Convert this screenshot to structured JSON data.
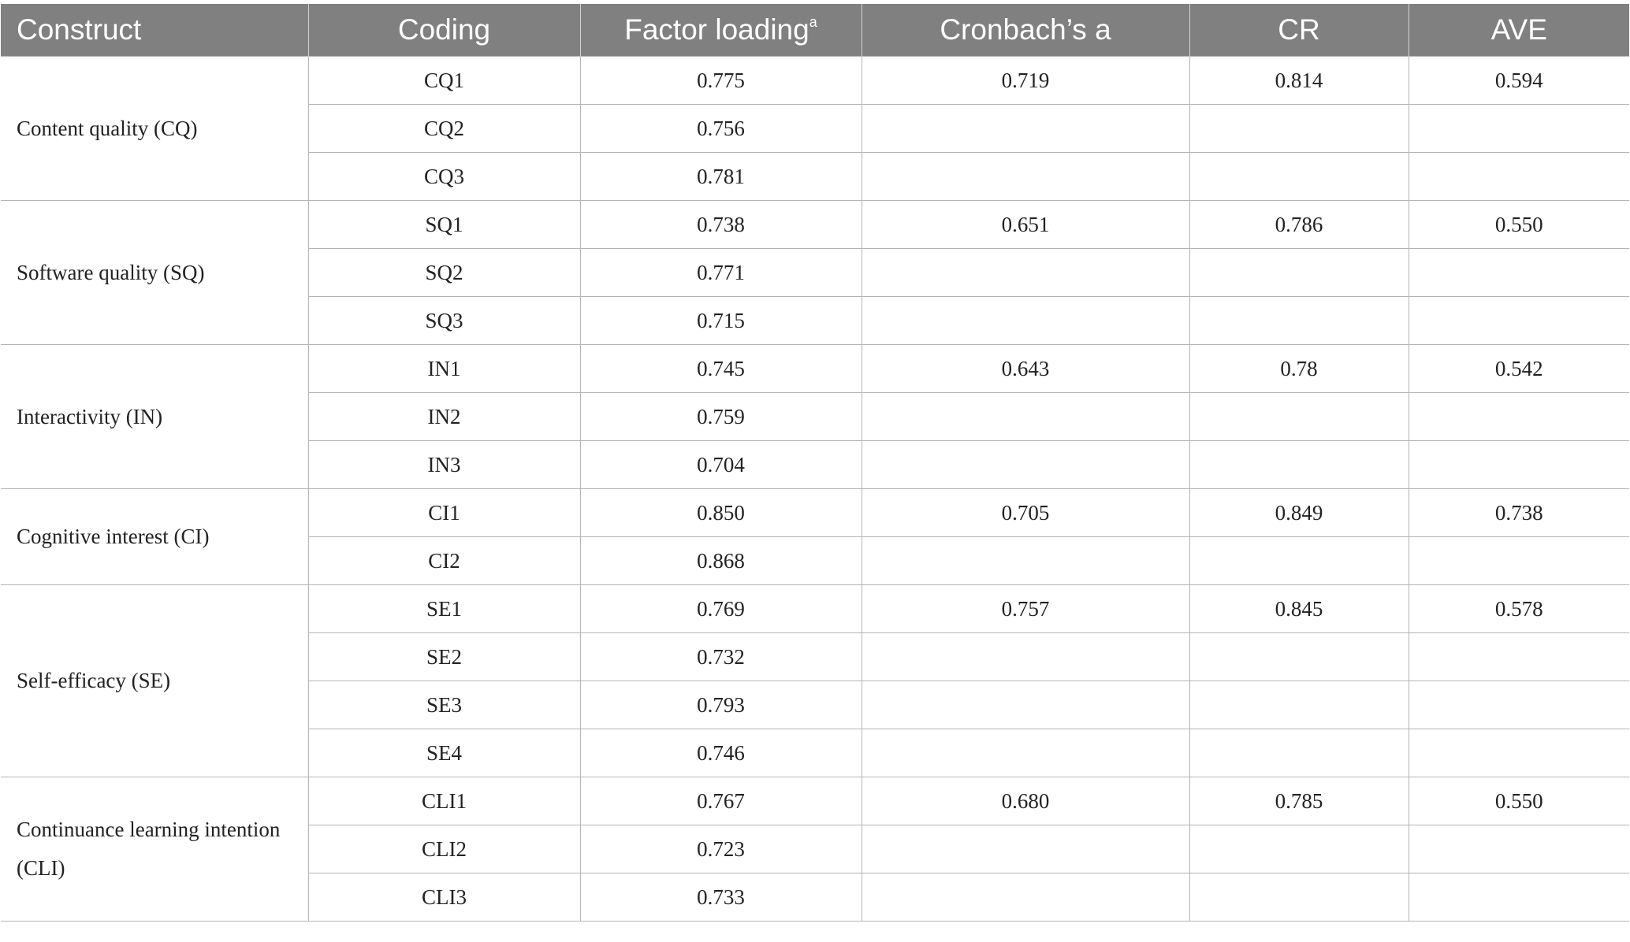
{
  "headers": {
    "construct": "Construct",
    "coding": "Coding",
    "factor_loading": "Factor loading",
    "factor_loading_sup": "a",
    "cronbach": "Cronbach’s a",
    "cr": "CR",
    "ave": "AVE"
  },
  "groups": [
    {
      "construct": "Content quality (CQ)",
      "cronbach": "0.719",
      "cr": "0.814",
      "ave": "0.594",
      "items": [
        {
          "code": "CQ1",
          "loading": "0.775"
        },
        {
          "code": "CQ2",
          "loading": "0.756"
        },
        {
          "code": "CQ3",
          "loading": "0.781"
        }
      ]
    },
    {
      "construct": "Software quality (SQ)",
      "cronbach": "0.651",
      "cr": "0.786",
      "ave": "0.550",
      "items": [
        {
          "code": "SQ1",
          "loading": "0.738"
        },
        {
          "code": "SQ2",
          "loading": "0.771"
        },
        {
          "code": "SQ3",
          "loading": "0.715"
        }
      ]
    },
    {
      "construct": "Interactivity (IN)",
      "cronbach": "0.643",
      "cr": "0.78",
      "ave": "0.542",
      "items": [
        {
          "code": "IN1",
          "loading": "0.745"
        },
        {
          "code": "IN2",
          "loading": "0.759"
        },
        {
          "code": "IN3",
          "loading": "0.704"
        }
      ]
    },
    {
      "construct": "Cognitive interest (CI)",
      "cronbach": "0.705",
      "cr": "0.849",
      "ave": "0.738",
      "items": [
        {
          "code": "CI1",
          "loading": "0.850"
        },
        {
          "code": "CI2",
          "loading": "0.868"
        }
      ]
    },
    {
      "construct": "Self-efficacy (SE)",
      "cronbach": "0.757",
      "cr": "0.845",
      "ave": "0.578",
      "items": [
        {
          "code": "SE1",
          "loading": "0.769"
        },
        {
          "code": "SE2",
          "loading": "0.732"
        },
        {
          "code": "SE3",
          "loading": "0.793"
        },
        {
          "code": "SE4",
          "loading": "0.746"
        }
      ]
    },
    {
      "construct": "Continuance learning intention (CLI)",
      "cronbach": "0.680",
      "cr": "0.785",
      "ave": "0.550",
      "items": [
        {
          "code": "CLI1",
          "loading": "0.767"
        },
        {
          "code": "CLI2",
          "loading": "0.723"
        },
        {
          "code": "CLI3",
          "loading": "0.733"
        }
      ]
    }
  ]
}
